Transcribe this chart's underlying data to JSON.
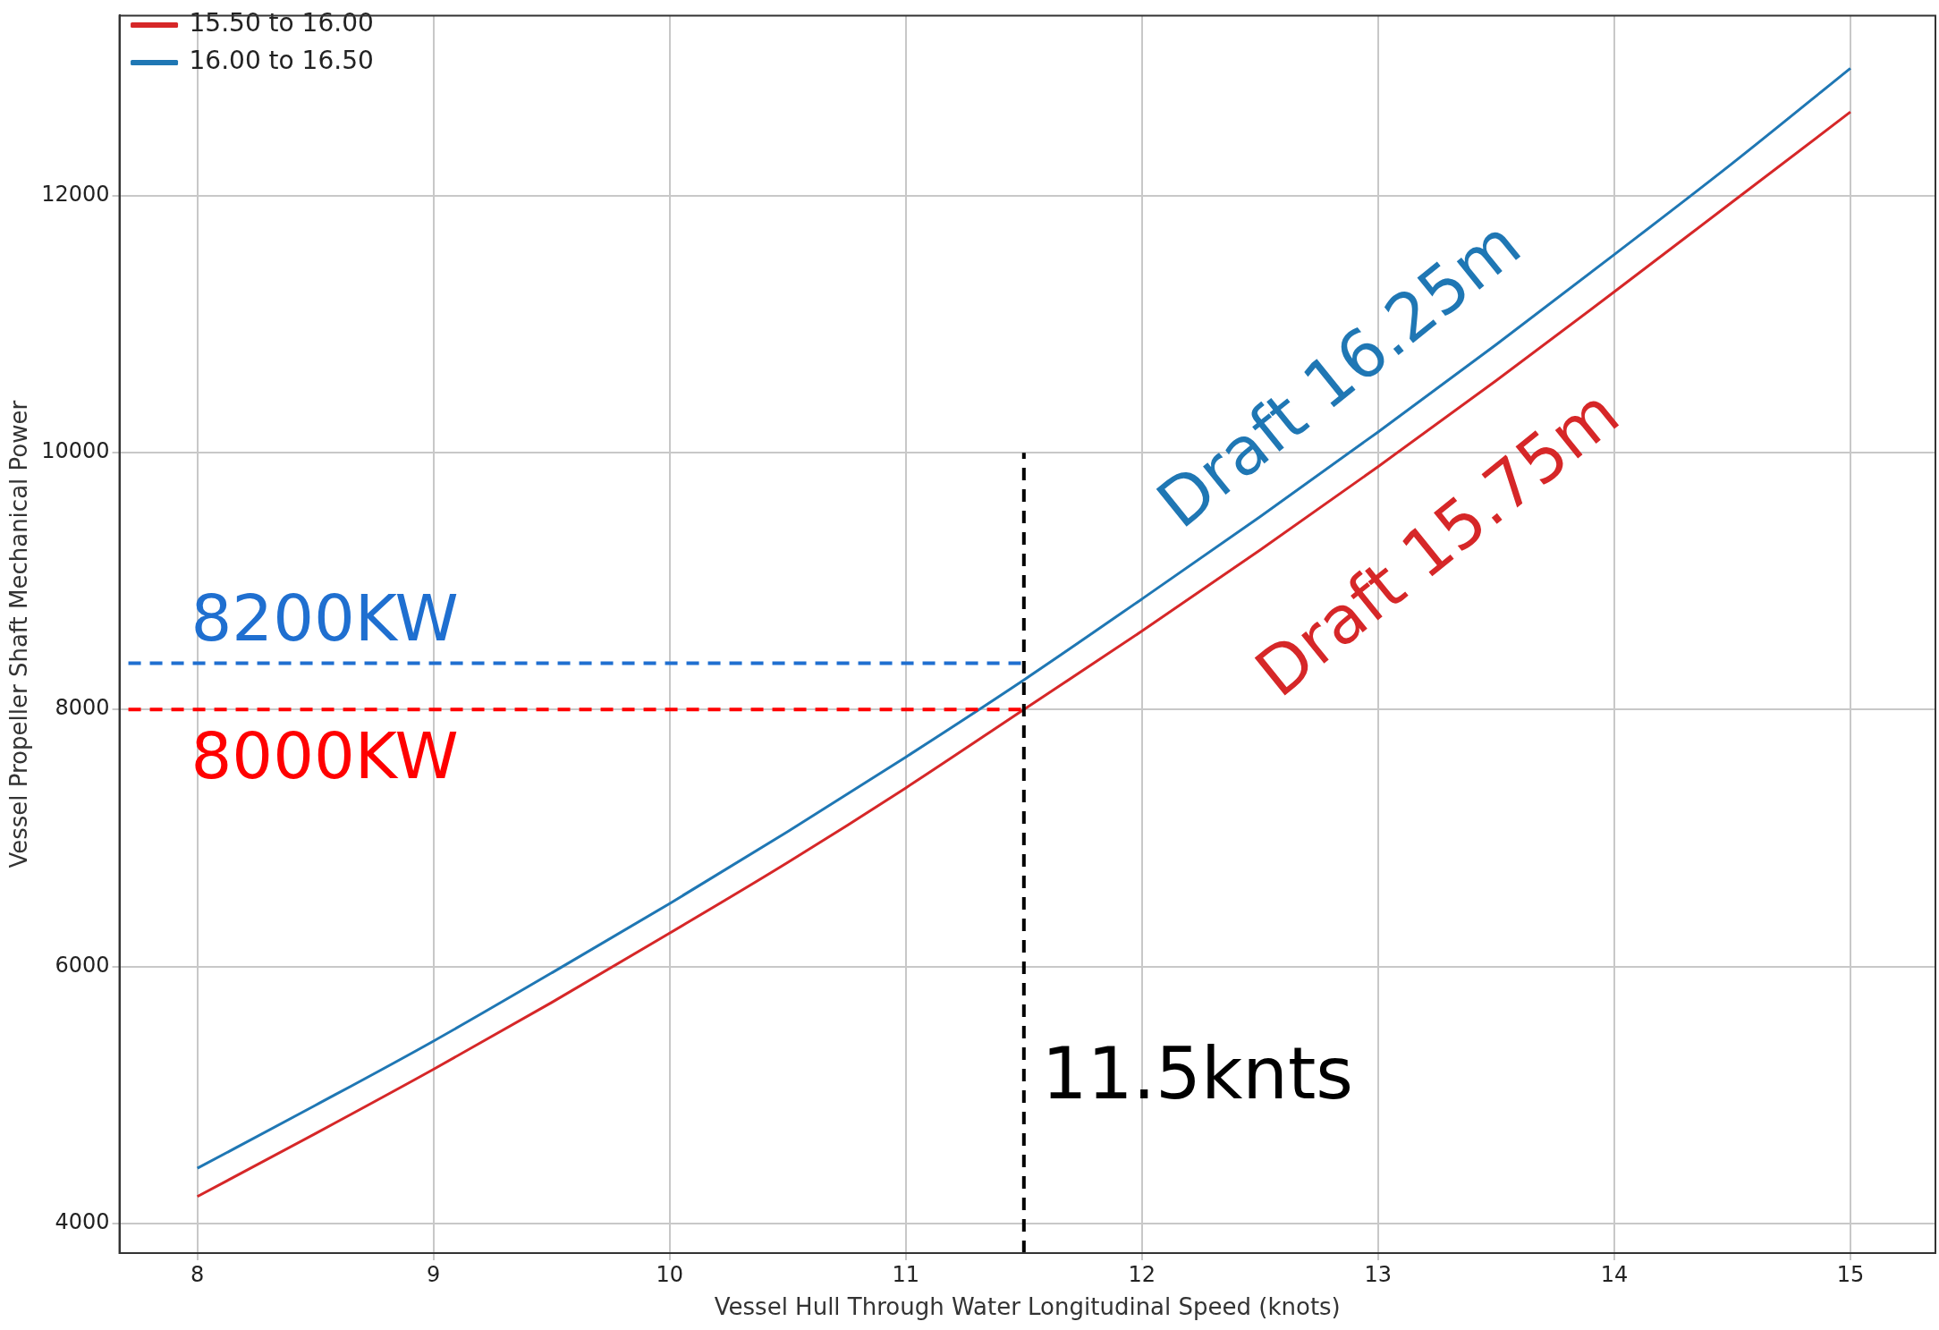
{
  "chart_data": {
    "type": "line",
    "xlabel": "Vessel Hull Through Water Longitudinal Speed (knots)",
    "ylabel": "Vessel Propeller Shaft Mechanical Power",
    "x": [
      8,
      8.5,
      9,
      9.5,
      10,
      10.5,
      11,
      11.5,
      12,
      12.5,
      13,
      13.5,
      14,
      14.5,
      15
    ],
    "series": [
      {
        "name": "15.50 to 16.00",
        "color": "#d62728",
        "values": [
          4210,
          4700,
          5200,
          5720,
          6260,
          6810,
          7390,
          8000,
          8610,
          9240,
          9890,
          10560,
          11250,
          11950,
          12650
        ]
      },
      {
        "name": "16.00 to 16.50",
        "color": "#1f77b4",
        "values": [
          4430,
          4920,
          5420,
          5950,
          6490,
          7050,
          7630,
          8230,
          8860,
          9500,
          10160,
          10840,
          11540,
          12250,
          12990
        ]
      }
    ],
    "xlim": [
      7.67,
      15.36
    ],
    "xticks": [
      8,
      9,
      10,
      11,
      12,
      13,
      14,
      15
    ],
    "ylim": [
      3770,
      13400
    ],
    "yticks": [
      4000,
      6000,
      8000,
      10000,
      12000
    ],
    "grid": true,
    "legend": "top left",
    "marker": "none",
    "line_style": "solid",
    "ref_lines": [
      {
        "axis": "x",
        "value": 11.5,
        "label": "11.5knts",
        "color": "#000000",
        "line_style": "dashed"
      },
      {
        "axis": "y",
        "value": 8360,
        "label": "8200KW",
        "color": "#1f6fd0",
        "line_style": "dashed"
      },
      {
        "axis": "y",
        "value": 8000,
        "label": "8000KW",
        "color": "#ff0000",
        "line_style": "dashed"
      }
    ],
    "annotations": [
      "Draft 16.25m",
      "Draft 15.75m"
    ]
  }
}
